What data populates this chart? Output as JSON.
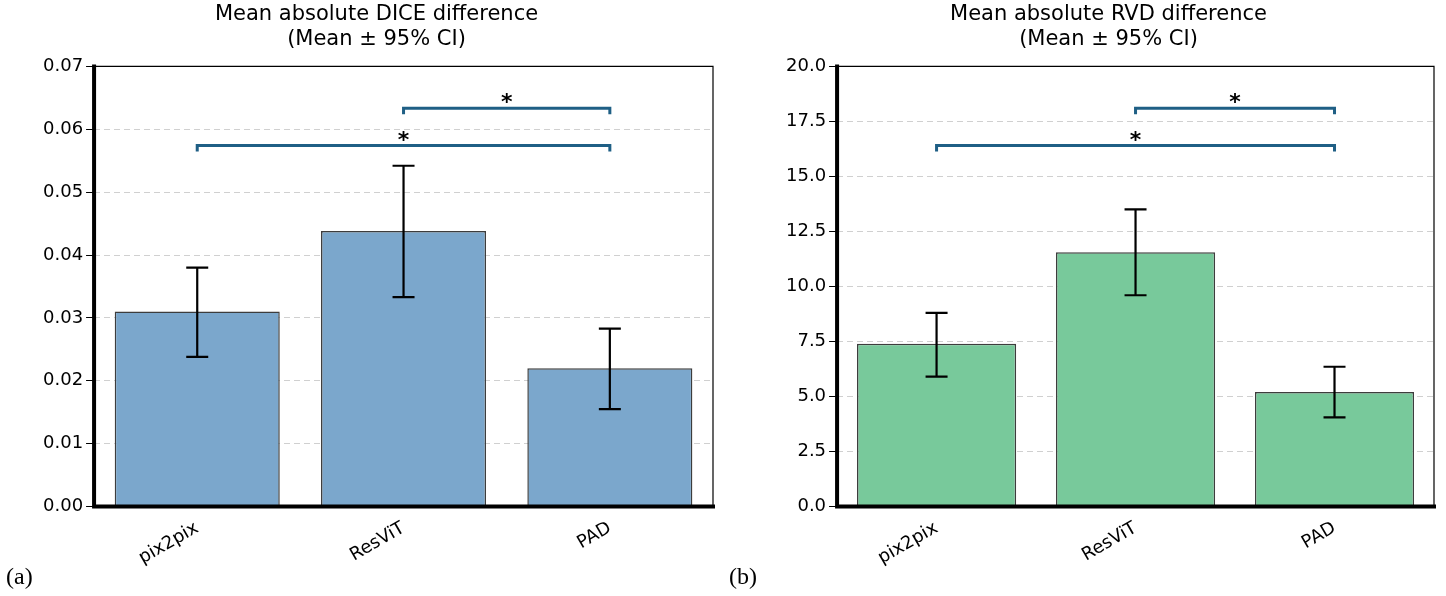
{
  "chart_data": [
    {
      "type": "bar",
      "title": "Mean absolute DICE difference",
      "subtitle": "(Mean ± 95% CI)",
      "categories": [
        "pix2pix",
        "ResViT",
        "PAD"
      ],
      "values": [
        0.031,
        0.0438,
        0.022
      ],
      "color": "#7ba7cc",
      "errors": [
        [
          0.0238,
          0.038
        ],
        [
          0.0333,
          0.0542
        ],
        [
          0.0155,
          0.0283
        ]
      ],
      "ylim": [
        0,
        0.07
      ],
      "yticks": [
        {
          "value": 0,
          "label": "0.00"
        },
        0.01,
        0.02,
        0.03,
        0.04,
        0.05,
        0.06,
        0.07
      ],
      "grid": "y",
      "annotations": [
        "*",
        "*",
        "(a)"
      ]
    },
    {
      "type": "bar",
      "title": "Mean absolute RVD difference",
      "subtitle": "(Mean ± 95% CI)",
      "categories": [
        "pix2pix",
        "ResViT",
        "PAD"
      ],
      "values": [
        7.4,
        11.55,
        5.2
      ],
      "color": "#78c99b",
      "errors": [
        [
          5.9,
          8.8
        ],
        [
          9.6,
          13.5
        ],
        [
          4.05,
          6.35
        ]
      ],
      "ylim": [
        0,
        20
      ],
      "yticks": [
        {
          "value": 0,
          "label": "0.0"
        },
        2.5,
        {
          "value": 5,
          "label": "5.0"
        },
        7.5,
        {
          "value": 10,
          "label": "10.0"
        },
        12.5,
        {
          "value": 15,
          "label": "15.0"
        },
        17.5,
        {
          "value": 20,
          "label": "20.0"
        }
      ],
      "grid": "y",
      "annotations": [
        "*",
        "*",
        "(b)"
      ]
    }
  ]
}
